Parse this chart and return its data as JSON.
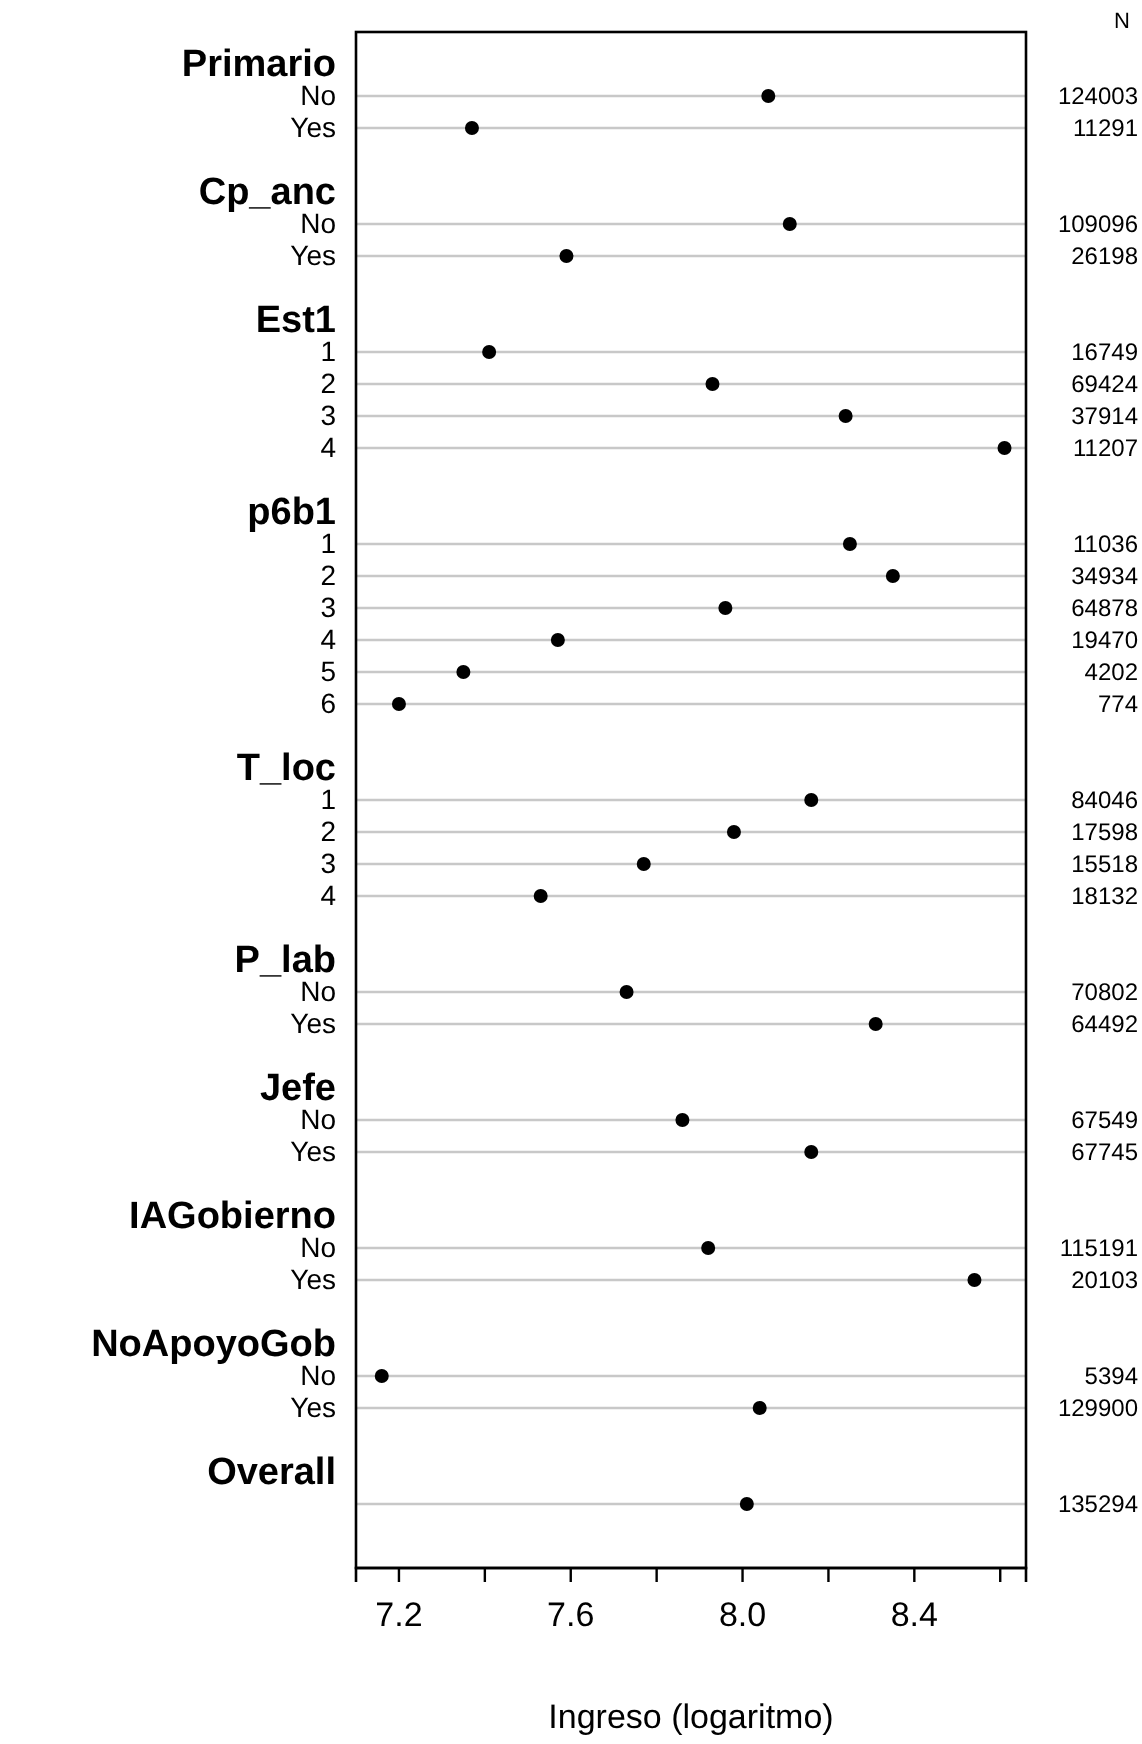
{
  "chart_data": {
    "type": "scatter",
    "orientation": "horizontal",
    "xlabel": "Ingreso (logaritmo)",
    "y2label": "N",
    "categories": [
      "Primario",
      "No",
      "Yes",
      null,
      "Cp_anc",
      "No",
      "Yes",
      null,
      "Est1",
      "1",
      "2",
      "3",
      "4",
      null,
      "p6b1",
      "1",
      "2",
      "3",
      "4",
      "5",
      "6",
      null,
      "T_loc",
      "1",
      "2",
      "3",
      "4",
      null,
      "P_lab",
      "No",
      "Yes",
      null,
      "Jefe",
      "No",
      "Yes",
      null,
      "IAGobierno",
      "No",
      "Yes",
      null,
      "NoApoyoGob",
      "No",
      "Yes",
      null,
      "Overall",
      null
    ],
    "values": [
      null,
      8.06,
      7.37,
      null,
      null,
      8.11,
      7.59,
      null,
      null,
      7.41,
      7.93,
      8.24,
      8.61,
      null,
      null,
      8.25,
      8.35,
      7.96,
      7.57,
      7.35,
      7.2,
      null,
      null,
      8.16,
      7.98,
      7.77,
      7.53,
      null,
      null,
      7.73,
      8.31,
      null,
      null,
      7.86,
      8.16,
      null,
      null,
      7.92,
      8.54,
      null,
      null,
      7.16,
      8.04,
      null,
      null,
      8.01
    ],
    "y2_categories": [
      null,
      "124003",
      "11291",
      null,
      null,
      "109096",
      "26198",
      null,
      null,
      "16749",
      "69424",
      "37914",
      "11207",
      null,
      null,
      "11036",
      "34934",
      "64878",
      "19470",
      "4202",
      "774",
      null,
      null,
      "84046",
      "17598",
      "15518",
      "18132",
      null,
      null,
      "70802",
      "64492",
      null,
      null,
      "67549",
      "67745",
      null,
      null,
      "115191",
      "20103",
      null,
      null,
      "5394",
      "129900",
      null,
      null,
      "135294"
    ],
    "color": "#000000",
    "marker": "circle",
    "grid": "y",
    "xlim": [
      7.1,
      8.66
    ],
    "xticks": [
      7.2,
      {
        "value": 7.4,
        "label": null
      },
      7.6,
      {
        "value": 7.8,
        "label": null
      },
      {
        "value": 8,
        "label": "8.0"
      },
      {
        "value": 8.2,
        "label": null
      },
      8.4,
      {
        "value": 8.6,
        "label": null
      }
    ]
  }
}
